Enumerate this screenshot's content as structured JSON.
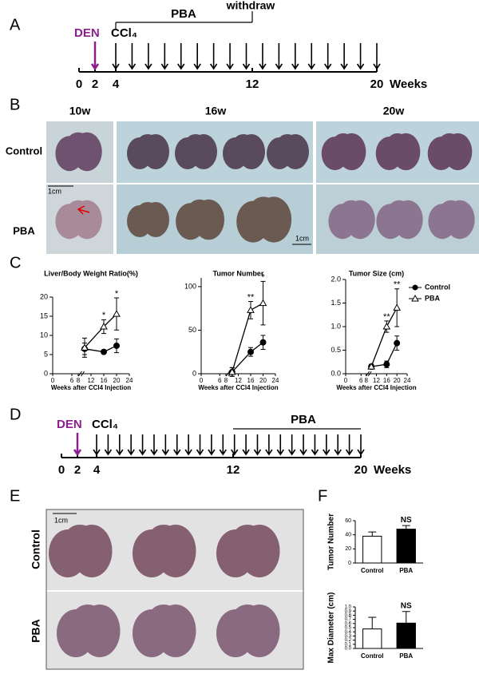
{
  "panel_labels": [
    "A",
    "B",
    "C",
    "D",
    "E",
    "F"
  ],
  "timeline_a": {
    "den": "DEN",
    "ccl4": "CCl₄",
    "pba": "PBA",
    "withdraw": "withdraw",
    "ticks": [
      0,
      2,
      4,
      12,
      20
    ],
    "unit": "Weeks"
  },
  "photos_b": {
    "columns": [
      "10w",
      "16w",
      "20w"
    ],
    "rows": [
      "Control",
      "PBA"
    ],
    "scale_bars": [
      "1cm",
      "1cm"
    ]
  },
  "timeline_d": {
    "den": "DEN",
    "ccl4": "CCl₄",
    "pba": "PBA",
    "ticks": [
      0,
      2,
      4,
      12,
      20
    ],
    "unit": "Weeks"
  },
  "photos_e": {
    "rows": [
      "Control",
      "PBA"
    ],
    "scale_bar": "1cm"
  },
  "chart_data": [
    {
      "type": "line",
      "title": "Liver/Body Weight Ratio(%)",
      "x_label": "Weeks after CCl4 Injection",
      "x": [
        10,
        16,
        20
      ],
      "xlim": [
        0,
        24
      ],
      "xticks": [
        0,
        6,
        8,
        12,
        16,
        20,
        24
      ],
      "ylim": [
        0,
        20
      ],
      "yticks": [
        0,
        5,
        10,
        15,
        20
      ],
      "series": [
        {
          "color": "#000000",
          "marker": "filled-circle",
          "values": [
            6.5,
            5.7,
            7.3
          ],
          "errors": [
            1.5,
            0.3,
            1.8
          ]
        },
        {
          "color": "#000000",
          "marker": "open-triangle",
          "values": [
            6.8,
            12.3,
            15.6
          ],
          "errors": [
            2.5,
            1.8,
            4.2
          ]
        }
      ],
      "annotations": [
        {
          "x": 16,
          "text": "*"
        },
        {
          "x": 20,
          "text": "*"
        }
      ]
    },
    {
      "type": "line",
      "title": "Tumor Number",
      "x_label": "Weeks after CCl4 Injection",
      "x": [
        10,
        16,
        20
      ],
      "xlim": [
        0,
        24
      ],
      "xticks": [
        0,
        6,
        8,
        12,
        16,
        20,
        24
      ],
      "ylim": [
        0,
        110
      ],
      "yticks": [
        0,
        50,
        100
      ],
      "series": [
        {
          "color": "#000000",
          "marker": "filled-circle",
          "values": [
            2,
            25,
            36
          ],
          "errors": [
            5,
            5,
            8
          ]
        },
        {
          "color": "#000000",
          "marker": "open-triangle",
          "values": [
            2,
            73,
            81
          ],
          "errors": [
            5,
            10,
            25
          ]
        }
      ],
      "annotations": [
        {
          "x": 16,
          "text": "**"
        },
        {
          "x": 20,
          "text": "*"
        }
      ]
    },
    {
      "type": "line",
      "title": "Tumor Size (cm)",
      "x_label": "Weeks after CCl4 Injection",
      "x": [
        10,
        16,
        20
      ],
      "xlim": [
        0,
        24
      ],
      "xticks": [
        0,
        6,
        8,
        12,
        16,
        20,
        24
      ],
      "ylim": [
        0,
        2
      ],
      "yticks": [
        {
          "value": 0,
          "label": "0.0"
        },
        {
          "value": 0.5,
          "label": "0.5"
        },
        {
          "value": 1,
          "label": "1.0"
        },
        {
          "value": 1.5,
          "label": "1.5"
        },
        {
          "value": 2,
          "label": "2.0"
        }
      ],
      "legend": "upper right",
      "series": [
        {
          "name": "Control",
          "color": "#000000",
          "marker": "filled-circle",
          "values": [
            0.15,
            0.2,
            0.65
          ],
          "errors": [
            0.05,
            0.07,
            0.15
          ]
        },
        {
          "name": "PBA",
          "color": "#000000",
          "marker": "open-triangle",
          "values": [
            0.15,
            1.0,
            1.4
          ],
          "errors": [
            0.05,
            0.12,
            0.4
          ]
        }
      ],
      "annotations": [
        {
          "x": 16,
          "text": "**"
        },
        {
          "x": 20,
          "text": "**"
        }
      ]
    },
    {
      "type": "bar",
      "y_label": "Tumor Number",
      "categories": [
        "Control",
        "PBA"
      ],
      "values": [
        38,
        48
      ],
      "errors": [
        6,
        5
      ],
      "colors": [
        "#ffffff",
        "#000000"
      ],
      "ylim": [
        0,
        60
      ],
      "yticks": [
        0,
        20,
        40,
        60
      ],
      "annotations": [
        {
          "category": "PBA",
          "text": "NS"
        }
      ]
    },
    {
      "type": "bar",
      "y_label": "Max Diameter (cm)",
      "categories": [
        "Control",
        "PBA"
      ],
      "values": [
        0.47,
        0.61
      ],
      "errors": [
        0.28,
        0.28
      ],
      "colors": [
        "#ffffff",
        "#000000"
      ],
      "ylim": [
        0,
        1
      ],
      "yticks": [
        {
          "value": 0,
          "label": "0.0"
        },
        {
          "value": 0.1,
          "label": "0.1"
        },
        {
          "value": 0.2,
          "label": "0.2"
        },
        {
          "value": 0.3,
          "label": "0.3"
        },
        {
          "value": 0.4,
          "label": "0.4"
        },
        {
          "value": 0.5,
          "label": "0.5"
        },
        {
          "value": 0.6,
          "label": "0.6"
        },
        {
          "value": 0.7,
          "label": "0.7"
        },
        {
          "value": 0.8,
          "label": "0.8"
        },
        {
          "value": 0.9,
          "label": "0.9"
        },
        {
          "value": 1,
          "label": "1.0"
        }
      ],
      "annotations": [
        {
          "category": "PBA",
          "text": "NS"
        }
      ]
    }
  ]
}
